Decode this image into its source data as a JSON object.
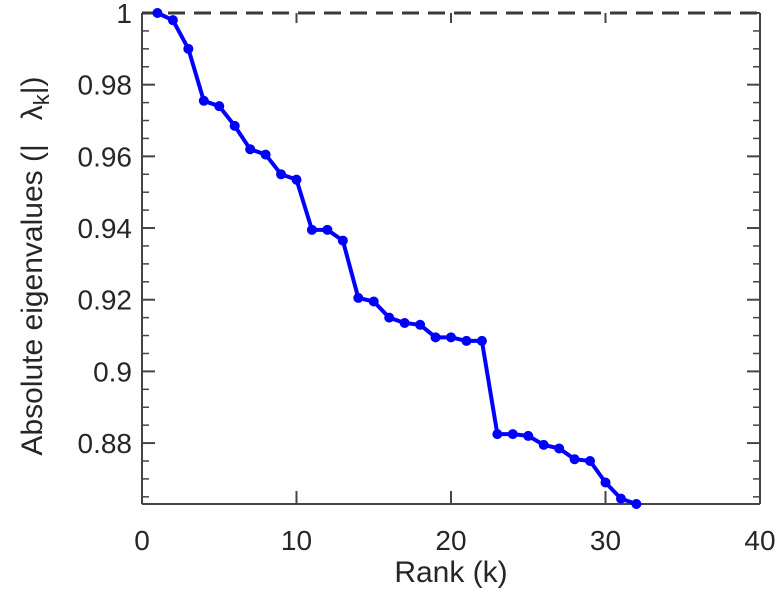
{
  "figure": {
    "background": "#ffffff"
  },
  "chart_data": {
    "type": "line",
    "title": "",
    "xlabel": "Rank (k)",
    "ylabel": "Absolute eigenvalues (| λk|)",
    "ylabel_parts": {
      "prefix": "Absolute eigenvalues (|",
      "symbol": "λ",
      "subscript": "k",
      "suffix": "|)"
    },
    "series": [
      {
        "name": "absolute-eigenvalues",
        "color": "#0000ff",
        "marker": "filled-circle",
        "line_width": 4,
        "x": [
          1,
          2,
          3,
          4,
          5,
          6,
          7,
          8,
          9,
          10,
          11,
          12,
          13,
          14,
          15,
          16,
          17,
          18,
          19,
          20,
          21,
          22,
          23,
          24,
          25,
          26,
          27,
          28,
          29,
          30,
          31,
          32
        ],
        "y": [
          1.0,
          0.998,
          0.99,
          0.9755,
          0.974,
          0.9685,
          0.962,
          0.9605,
          0.955,
          0.9535,
          0.9395,
          0.9395,
          0.9365,
          0.9205,
          0.9195,
          0.915,
          0.9135,
          0.913,
          0.9095,
          0.9095,
          0.9085,
          0.9085,
          0.8825,
          0.8825,
          0.882,
          0.8795,
          0.8785,
          0.8755,
          0.875,
          0.869,
          0.8645,
          0.863
        ]
      }
    ],
    "xlim": [
      0,
      40
    ],
    "ylim": [
      0.863,
      1.0
    ],
    "x_ticks": [
      0,
      10,
      20,
      30,
      40
    ],
    "x_tick_labels": [
      "0",
      "10",
      "20",
      "30",
      "40"
    ],
    "y_ticks": [
      1,
      0.98,
      0.96,
      0.94,
      0.92,
      0.9,
      0.88
    ],
    "y_tick_labels": [
      "1",
      "0.98",
      "0.96",
      "0.94",
      "0.92",
      "0.9",
      "0.88"
    ],
    "y_minor_tick_step": 0.005,
    "reference_line": {
      "y": 1.0,
      "style": "dashed",
      "color": "#3a3a3a"
    },
    "grid": false,
    "legend": null,
    "axis_color": "#444444",
    "text_color": "#262626"
  }
}
